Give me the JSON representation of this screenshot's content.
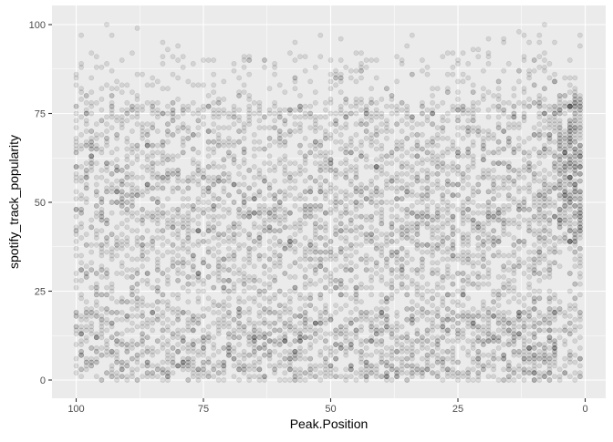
{
  "chart_data": {
    "type": "scatter",
    "title": "",
    "xlabel": "Peak.Position",
    "ylabel": "spotify_track_popularity",
    "xlim": [
      100,
      0
    ],
    "x_reversed": true,
    "ylim": [
      0,
      100
    ],
    "x_ticks": [
      100,
      75,
      50,
      25,
      0
    ],
    "y_ticks": [
      0,
      25,
      50,
      75,
      100
    ],
    "x_tick_labels": [
      "100",
      "75",
      "50",
      "25",
      "0"
    ],
    "y_tick_labels": [
      "0",
      "25",
      "50",
      "75",
      "100"
    ],
    "grid": true,
    "legend": "none",
    "point_color": "#000000",
    "point_alpha": 0.1,
    "panel_background": "#ebebeb",
    "grid_color": "#ffffff",
    "x_integer_values": true,
    "y_integer_values": true,
    "points_summary": "dense overlapping points covering Peak.Position 1-100 and popularity 0-100, with the densest band at Peak.Position near 1 and popularity 40-75"
  }
}
